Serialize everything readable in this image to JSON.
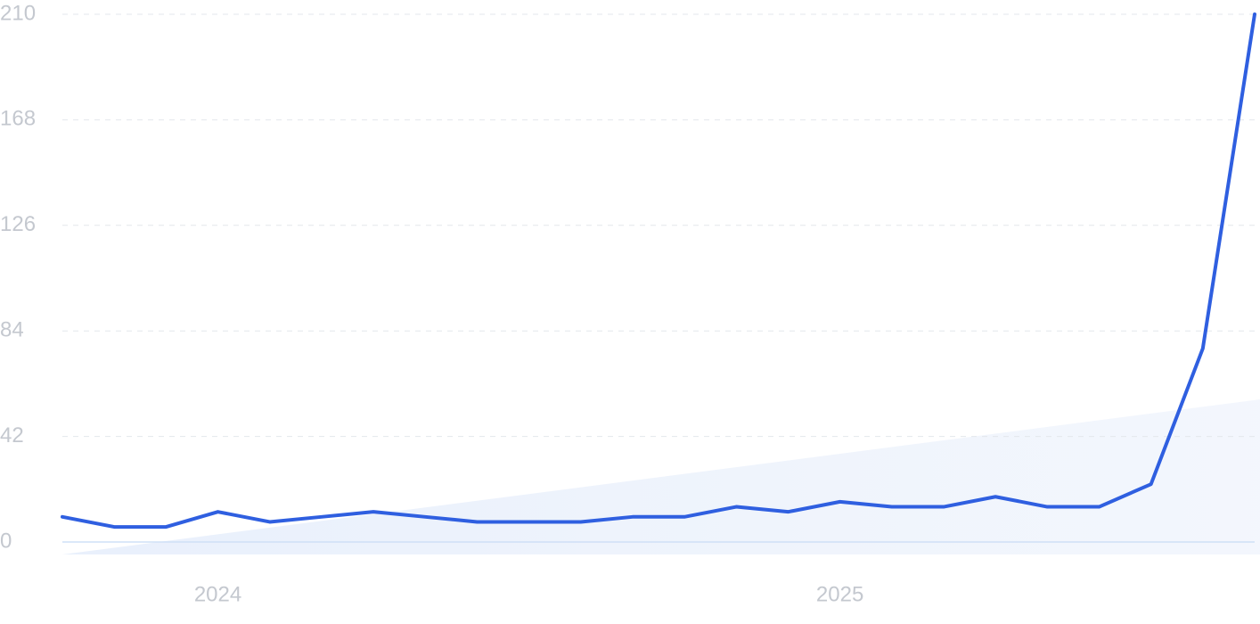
{
  "chart_data": {
    "type": "line",
    "categories": [
      null,
      null,
      null,
      "2024",
      null,
      null,
      null,
      null,
      null,
      null,
      null,
      null,
      null,
      null,
      null,
      "2025",
      null,
      null,
      null,
      null,
      null,
      null,
      null,
      null
    ],
    "series": [
      {
        "color": "#2f5fe0",
        "values": [
          10,
          6,
          6,
          12,
          8,
          10,
          12,
          10,
          8,
          8,
          8,
          10,
          10,
          14,
          12,
          16,
          14,
          14,
          18,
          14,
          14,
          23,
          77,
          210
        ]
      }
    ],
    "ylim": [
      0,
      210
    ],
    "yticks": [
      0,
      42,
      84,
      126,
      168,
      210
    ],
    "grid": true
  }
}
